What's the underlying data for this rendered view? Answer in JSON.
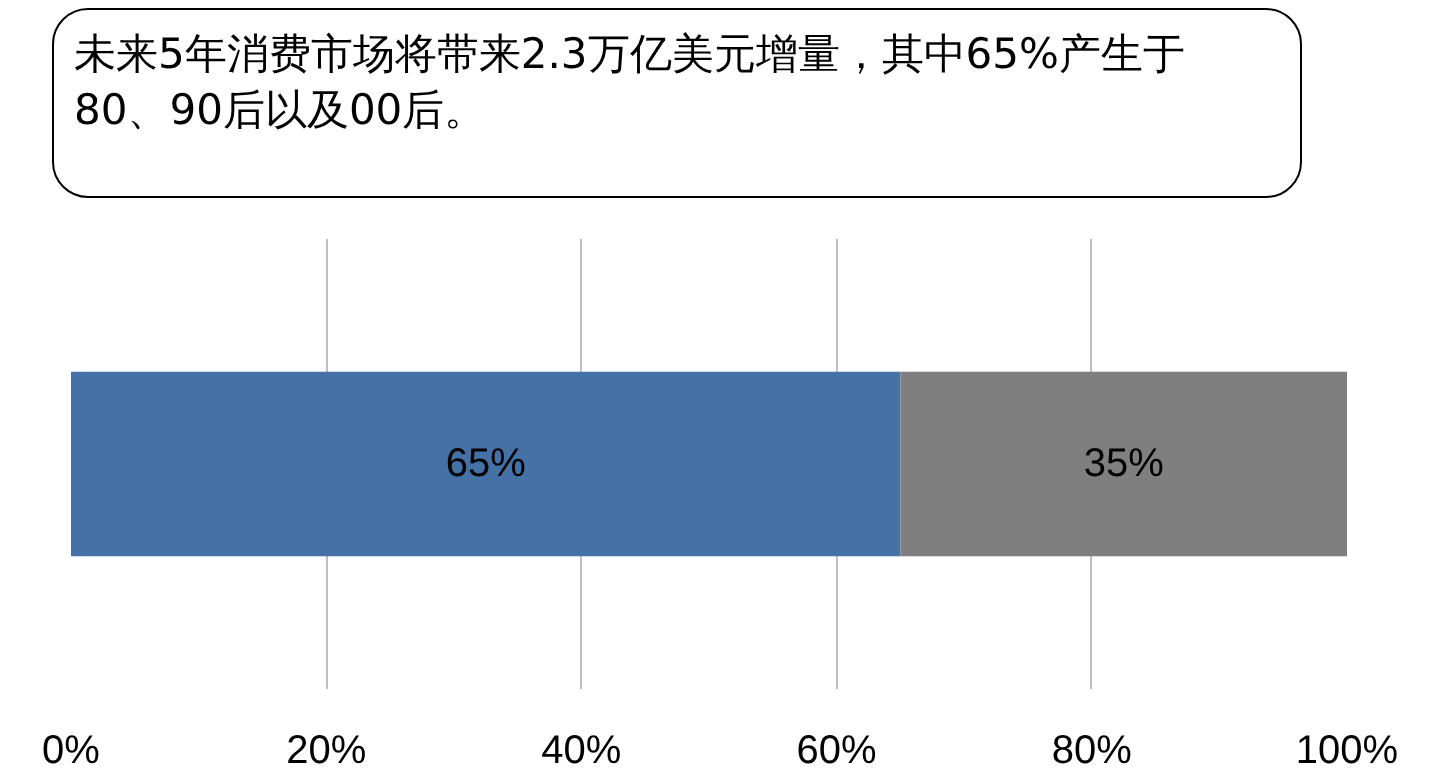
{
  "chart_data": {
    "type": "bar",
    "title": "未来5年消费市场将带来2.3万亿美元增量，其中65%产生于80、90后以及00后。",
    "orientation": "horizontal",
    "stacked": true,
    "categories": [
      null
    ],
    "series": [
      {
        "color": "#4472a6",
        "values": [
          65
        ],
        "value_labels": [
          "65%"
        ]
      },
      {
        "color": "#7f7f7f",
        "values": [
          35
        ],
        "value_labels": [
          "35%"
        ]
      }
    ],
    "xlim": [
      0,
      100
    ],
    "xticks": [
      {
        "value": 0,
        "label": "0%"
      },
      {
        "value": 20,
        "label": "20%"
      },
      {
        "value": 40,
        "label": "40%"
      },
      {
        "value": 60,
        "label": "60%"
      },
      {
        "value": 80,
        "label": "80%"
      },
      {
        "value": 100,
        "label": "100%"
      }
    ],
    "grid": "x",
    "tick_labels": "x"
  }
}
